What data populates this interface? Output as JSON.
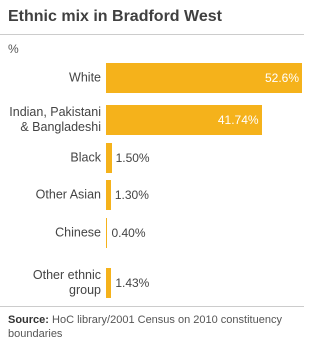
{
  "chart_data": {
    "type": "bar",
    "orientation": "horizontal",
    "title": "Ethnic mix in Bradford West",
    "value_axis_label": "%",
    "categories": [
      "White",
      "Indian, Pakistani & Bangladeshi",
      "Black",
      "Other Asian",
      "Chinese",
      "Other ethnic group"
    ],
    "values": [
      52.6,
      41.74,
      1.5,
      1.3,
      0.4,
      1.43
    ],
    "value_labels": [
      "52.6%",
      "41.74%",
      "1.50%",
      "1.30%",
      "0.40%",
      "1.43%"
    ],
    "color": "#f5b21b",
    "source": {
      "label": "Source:",
      "text": "HoC library/2001 Census on 2010 constituency boundaries"
    }
  }
}
